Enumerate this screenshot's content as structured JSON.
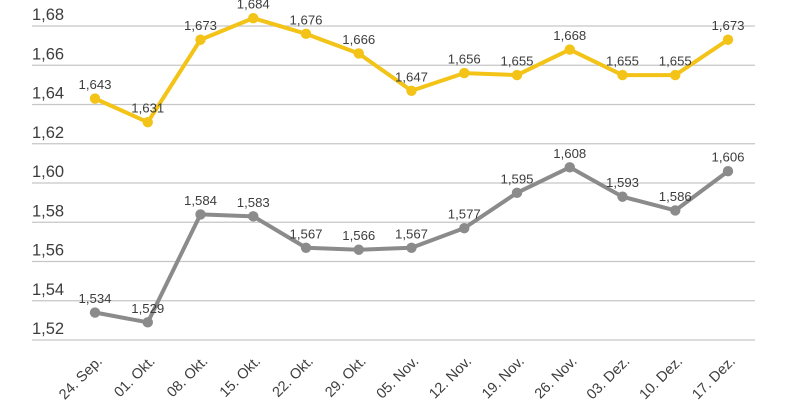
{
  "chart_data": {
    "type": "line",
    "title": "",
    "xlabel": "",
    "ylabel": "",
    "categories": [
      "24. Sep.",
      "01. Okt.",
      "08. Okt.",
      "15. Okt.",
      "22. Okt.",
      "29. Okt.",
      "05. Nov.",
      "12. Nov.",
      "19. Nov.",
      "26. Nov.",
      "03. Dez.",
      "10. Dez.",
      "17. Dez."
    ],
    "series": [
      {
        "name": "gray-series",
        "color": "#8B8B8B",
        "values": [
          1.534,
          1.529,
          1.584,
          1.583,
          1.567,
          1.566,
          1.567,
          1.577,
          1.595,
          1.608,
          1.593,
          1.586,
          1.606
        ],
        "point_labels": [
          "1,534",
          "1,529",
          "1,584",
          "1,583",
          "1,567",
          "1,566",
          "1,567",
          "1,577",
          "1,595",
          "1,608",
          "1,593",
          "1,586",
          "1,606"
        ]
      },
      {
        "name": "yellow-series",
        "color": "#F3C317",
        "values": [
          1.643,
          1.631,
          1.673,
          1.684,
          1.676,
          1.666,
          1.647,
          1.656,
          1.655,
          1.668,
          1.655,
          1.655,
          1.673
        ],
        "point_labels": [
          "1,643",
          "1,631",
          "1,673",
          "1,684",
          "1,676",
          "1,666",
          "1,647",
          "1,656",
          "1,655",
          "1,668",
          "1,655",
          "1,655",
          "1,673"
        ]
      }
    ],
    "ylim": [
      1.52,
      1.68
    ],
    "ytick_step": 0.02,
    "yticks": [
      "1,68",
      "1,66",
      "1,64",
      "1,62",
      "1,60",
      "1,58",
      "1,56",
      "1,54",
      "1,52"
    ],
    "decimal_separator": ",",
    "grid": true,
    "legend": "none",
    "colors": {
      "background": "#FFFFFF",
      "gridline": "#C6C6C6",
      "axis_text": "#3D3D3D",
      "data_label_text": "#3D3D3D"
    }
  }
}
